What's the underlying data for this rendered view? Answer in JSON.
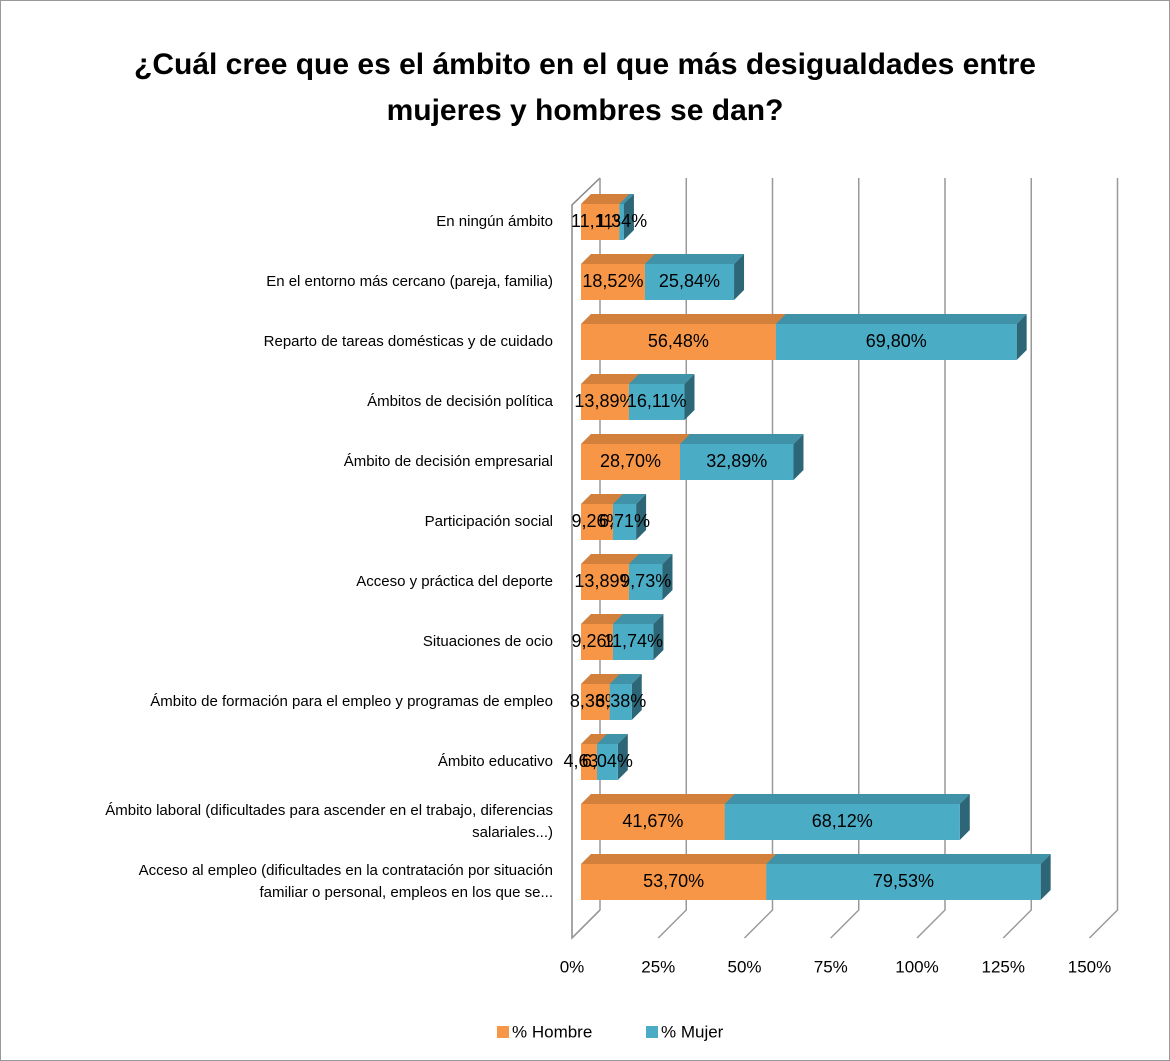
{
  "chart_data": {
    "type": "bar3d_stacked_horizontal",
    "title": "¿Cuál cree que es el ámbito en el que más desigualdades entre mujeres y hombres se dan?",
    "categories": [
      "En ningún ámbito",
      "En el entorno más cercano (pareja, familia)",
      "Reparto de tareas domésticas y de cuidado",
      "Ámbitos de decisión política",
      "Ámbito de decisión empresarial",
      "Participación social",
      "Acceso y práctica del deporte",
      "Situaciones de ocio",
      "Ámbito de formación para el empleo y programas de empleo",
      "Ámbito educativo",
      "Ámbito laboral (dificultades para ascender en el trabajo, diferencias salariales...)",
      "Acceso al empleo (dificultades en la contratación por situación familiar o personal, empleos en los que se..."
    ],
    "series": [
      {
        "name": "% Hombre",
        "color": "#f79646",
        "values": [
          11.11,
          18.52,
          56.48,
          13.89,
          28.7,
          9.26,
          13.89,
          9.26,
          8.33,
          4.63,
          41.67,
          53.7
        ],
        "value_labels": [
          "11,11%",
          "18,52%",
          "56,48%",
          "13,89%",
          "28,70%",
          "9,26%",
          "13,89%",
          "9,26%",
          "8,33%",
          "4,63%",
          "41,67%",
          "53,70%"
        ]
      },
      {
        "name": "% Mujer",
        "color": "#4bacc6",
        "values": [
          1.34,
          25.84,
          69.8,
          16.11,
          32.89,
          6.71,
          9.73,
          11.74,
          6.38,
          6.04,
          68.12,
          79.53
        ],
        "value_labels": [
          "1,34%",
          "25,84%",
          "69,80%",
          "16,11%",
          "32,89%",
          "6,71%",
          "9,73%",
          "11,74%",
          "6,38%",
          "6,04%",
          "68,12%",
          "79,53%"
        ]
      }
    ],
    "xlim": [
      0,
      150
    ],
    "xticks": [
      {
        "value": 0,
        "label": "0%"
      },
      {
        "value": 25,
        "label": "25%"
      },
      {
        "value": 50,
        "label": "50%"
      },
      {
        "value": 75,
        "label": "75%"
      },
      {
        "value": 100,
        "label": "100%"
      },
      {
        "value": 125,
        "label": "125%"
      },
      {
        "value": 150,
        "label": "150%"
      }
    ],
    "grid": true,
    "legend": "bottom"
  }
}
